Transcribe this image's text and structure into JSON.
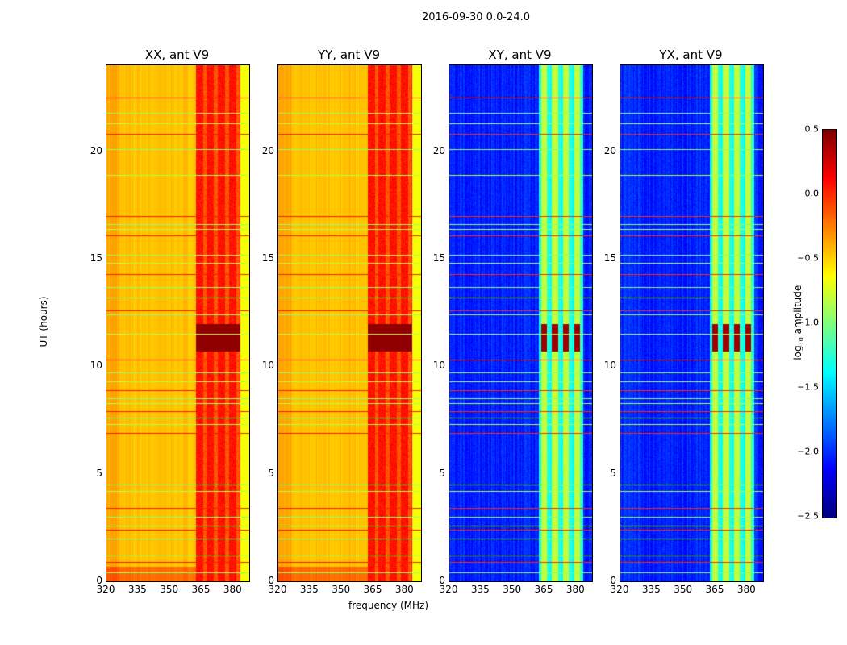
{
  "chart_data": {
    "type": "heatmap",
    "title": "2016-09-30 0.0-24.0",
    "xlabel": "frequency (MHz)",
    "ylabel": "UT (hours)",
    "xlim": [
      320,
      387.5
    ],
    "ylim": [
      0,
      24
    ],
    "xticks": [
      "320",
      "335",
      "350",
      "365",
      "380"
    ],
    "yticks": [
      "0",
      "5",
      "10",
      "15",
      "20"
    ],
    "panels": [
      {
        "title": "XX, ant V9",
        "kind": "auto"
      },
      {
        "title": "YY, ant V9",
        "kind": "auto"
      },
      {
        "title": "XY, ant V9",
        "kind": "cross"
      },
      {
        "title": "YX, ant V9",
        "kind": "cross"
      }
    ],
    "colorbar": {
      "label_prefix": "log",
      "label_sub": "10",
      "label_suffix": " amplitude",
      "range": [
        -2.5,
        0.5
      ],
      "ticks": [
        "0.5",
        "0.0",
        "−0.5",
        "−1.0",
        "−1.5",
        "−2.0",
        "−2.5"
      ],
      "colormap": "jet"
    },
    "rfi_band_MHz": [
      362,
      383
    ],
    "bright_interval_hours": [
      10.7,
      12.0
    ],
    "flagged_rows_hours": [
      0.4,
      0.9,
      1.2,
      2.0,
      2.4,
      2.6,
      3.0,
      3.4,
      4.2,
      4.5,
      6.9,
      7.3,
      7.6,
      7.9,
      8.3,
      8.5,
      8.9,
      9.3,
      9.7,
      10.3,
      11.5,
      12.4,
      12.6,
      13.2,
      13.7,
      14.3,
      14.8,
      15.2,
      16.1,
      16.4,
      16.6,
      17.0,
      18.9,
      20.1,
      20.8,
      21.3,
      21.8,
      22.5
    ]
  }
}
